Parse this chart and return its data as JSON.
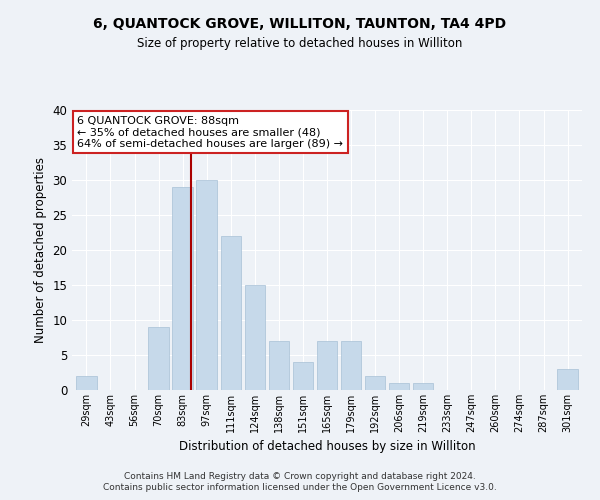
{
  "title1": "6, QUANTOCK GROVE, WILLITON, TAUNTON, TA4 4PD",
  "title2": "Size of property relative to detached houses in Williton",
  "xlabel": "Distribution of detached houses by size in Williton",
  "ylabel": "Number of detached properties",
  "categories": [
    "29sqm",
    "43sqm",
    "56sqm",
    "70sqm",
    "83sqm",
    "97sqm",
    "111sqm",
    "124sqm",
    "138sqm",
    "151sqm",
    "165sqm",
    "179sqm",
    "192sqm",
    "206sqm",
    "219sqm",
    "233sqm",
    "247sqm",
    "260sqm",
    "274sqm",
    "287sqm",
    "301sqm"
  ],
  "values": [
    2,
    0,
    0,
    9,
    29,
    30,
    22,
    15,
    7,
    4,
    7,
    7,
    2,
    1,
    1,
    0,
    0,
    0,
    0,
    0,
    3
  ],
  "bar_color": "#c6d9ea",
  "bar_edge_color": "#a8c0d6",
  "vline_color": "#aa0000",
  "annotation_text": "6 QUANTOCK GROVE: 88sqm\n← 35% of detached houses are smaller (48)\n64% of semi-detached houses are larger (89) →",
  "annotation_box_color": "#ffffff",
  "annotation_box_edge": "#cc2222",
  "footer1": "Contains HM Land Registry data © Crown copyright and database right 2024.",
  "footer2": "Contains public sector information licensed under the Open Government Licence v3.0.",
  "bg_color": "#eef2f7",
  "grid_color": "#ffffff",
  "ylim": [
    0,
    40
  ],
  "yticks": [
    0,
    5,
    10,
    15,
    20,
    25,
    30,
    35,
    40
  ]
}
